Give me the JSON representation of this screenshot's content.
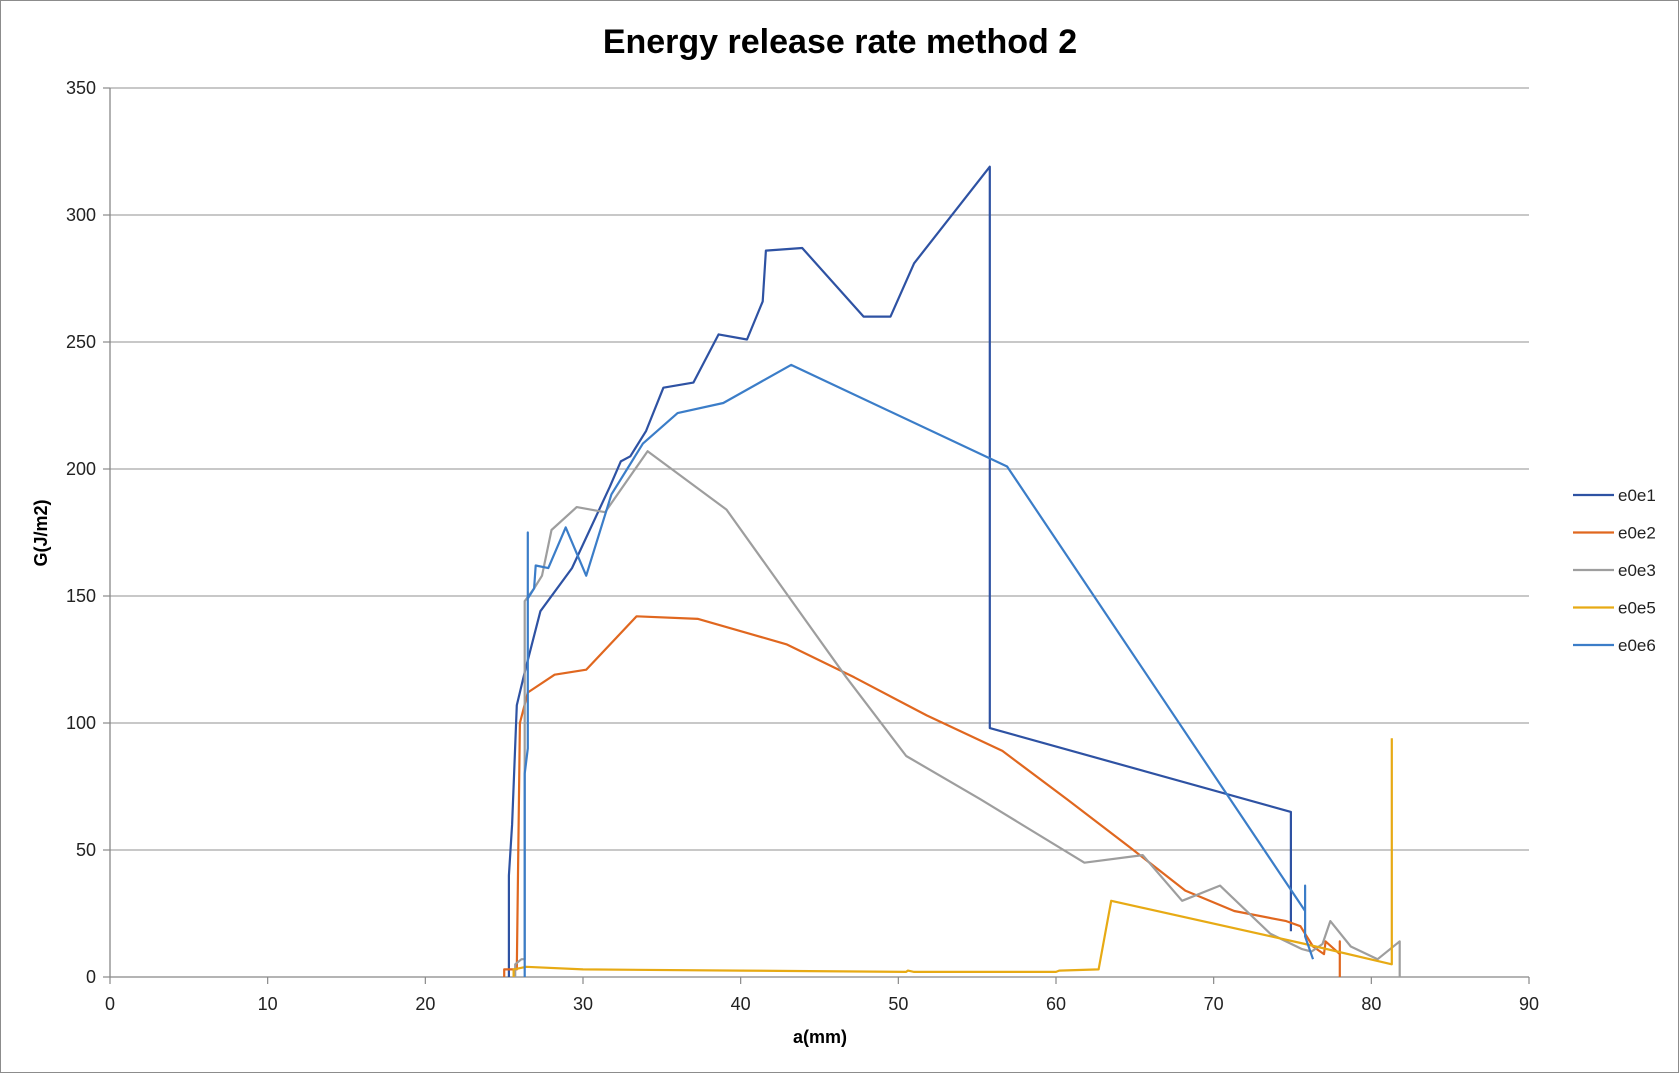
{
  "chart_data": {
    "type": "line",
    "title": "Energy release rate method 2",
    "xlabel": "a(mm)",
    "ylabel": "G(J/m2)",
    "xlim": [
      0,
      90
    ],
    "ylim": [
      0,
      350
    ],
    "xticks": [
      0,
      10,
      20,
      30,
      40,
      50,
      60,
      70,
      80,
      90
    ],
    "yticks": [
      0,
      50,
      100,
      150,
      200,
      250,
      300,
      350
    ],
    "grid": "horizontal",
    "legend_position": "right",
    "series": [
      {
        "name": "e0e1",
        "color": "#2e52a3",
        "points": [
          [
            25.3,
            0
          ],
          [
            25.3,
            40
          ],
          [
            25.5,
            60
          ],
          [
            25.8,
            107
          ],
          [
            26.3,
            120
          ],
          [
            27.3,
            144
          ],
          [
            29.3,
            161
          ],
          [
            31.7,
            193
          ],
          [
            32.4,
            203
          ],
          [
            33.0,
            205
          ],
          [
            34.0,
            215
          ],
          [
            35.1,
            232
          ],
          [
            37.0,
            234
          ],
          [
            38.6,
            253
          ],
          [
            40.4,
            251
          ],
          [
            41.4,
            266
          ],
          [
            41.6,
            286
          ],
          [
            43.9,
            287
          ],
          [
            47.8,
            260
          ],
          [
            49.5,
            260
          ],
          [
            51.0,
            281
          ],
          [
            55.8,
            319
          ],
          [
            55.8,
            98
          ],
          [
            74.9,
            65
          ],
          [
            74.9,
            18
          ]
        ]
      },
      {
        "name": "e0e2",
        "color": "#e0671f",
        "points": [
          [
            25.0,
            0
          ],
          [
            25.0,
            3
          ],
          [
            25.8,
            3
          ],
          [
            26.0,
            100
          ],
          [
            26.5,
            112
          ],
          [
            28.2,
            119
          ],
          [
            30.2,
            121
          ],
          [
            33.4,
            142
          ],
          [
            37.3,
            141
          ],
          [
            42.9,
            131
          ],
          [
            47.2,
            118
          ],
          [
            51.8,
            103
          ],
          [
            56.6,
            89
          ],
          [
            60.7,
            70
          ],
          [
            64.7,
            51
          ],
          [
            68.2,
            34
          ],
          [
            71.3,
            26
          ],
          [
            74.6,
            22
          ],
          [
            75.5,
            20
          ],
          [
            76.3,
            12
          ],
          [
            77.0,
            9
          ],
          [
            77.1,
            14
          ],
          [
            78.0,
            9
          ],
          [
            78.0,
            14
          ],
          [
            78.0,
            0
          ]
        ]
      },
      {
        "name": "e0e3",
        "color": "#9e9e9e",
        "points": [
          [
            25.7,
            0
          ],
          [
            25.7,
            5
          ],
          [
            26.1,
            7
          ],
          [
            26.3,
            7
          ],
          [
            26.3,
            148
          ],
          [
            26.9,
            153
          ],
          [
            27.4,
            158
          ],
          [
            28.0,
            176
          ],
          [
            29.6,
            185
          ],
          [
            31.4,
            183
          ],
          [
            34.1,
            207
          ],
          [
            39.1,
            184
          ],
          [
            46.7,
            118
          ],
          [
            50.5,
            87
          ],
          [
            55.2,
            70
          ],
          [
            61.8,
            45
          ],
          [
            65.5,
            48
          ],
          [
            68.0,
            30
          ],
          [
            70.4,
            36
          ],
          [
            73.6,
            17
          ],
          [
            75.6,
            11
          ],
          [
            76.2,
            10
          ],
          [
            76.9,
            13
          ],
          [
            77.4,
            22
          ],
          [
            78.7,
            12
          ],
          [
            80.4,
            7
          ],
          [
            81.8,
            14
          ],
          [
            81.8,
            0
          ]
        ]
      },
      {
        "name": "e0e5",
        "color": "#e7aa14",
        "points": [
          [
            25.6,
            0
          ],
          [
            25.6,
            3
          ],
          [
            26.4,
            4
          ],
          [
            30.0,
            3
          ],
          [
            40.0,
            2.5
          ],
          [
            50.5,
            2
          ],
          [
            50.6,
            2.5
          ],
          [
            51.0,
            2
          ],
          [
            60.0,
            2
          ],
          [
            60.2,
            2.5
          ],
          [
            62.7,
            3
          ],
          [
            63.5,
            30
          ],
          [
            75.8,
            13
          ],
          [
            81.3,
            5
          ],
          [
            81.3,
            94
          ]
        ]
      },
      {
        "name": "e0e6",
        "color": "#3b7dc8",
        "points": [
          [
            26.3,
            0
          ],
          [
            26.3,
            80
          ],
          [
            26.5,
            90
          ],
          [
            26.5,
            175
          ],
          [
            26.5,
            149
          ],
          [
            26.9,
            153
          ],
          [
            27.0,
            162
          ],
          [
            27.8,
            161
          ],
          [
            28.9,
            177
          ],
          [
            30.2,
            158
          ],
          [
            31.8,
            190
          ],
          [
            33.8,
            210
          ],
          [
            36.0,
            222
          ],
          [
            38.9,
            226
          ],
          [
            43.2,
            241
          ],
          [
            56.9,
            201
          ],
          [
            75.8,
            26
          ],
          [
            75.8,
            36
          ],
          [
            75.8,
            16
          ],
          [
            76.3,
            7
          ]
        ]
      }
    ]
  }
}
